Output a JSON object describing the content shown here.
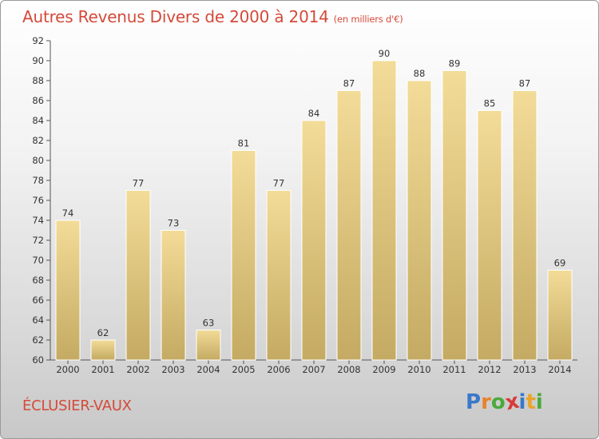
{
  "title": "Autres Revenus Divers de 2000 à 2014",
  "subtitle": "(en milliers d'€)",
  "commune": "ÉCLUSIER-VAUX",
  "logo": {
    "letters": [
      "P",
      "r",
      "o",
      "x",
      "i",
      "t",
      "i"
    ],
    "colors": [
      "#3a78c8",
      "#e8822a",
      "#4aaa3a",
      "#d63c3c",
      "#3a78c8",
      "#e8a52a",
      "#4aaa3a"
    ]
  },
  "colors": {
    "title": "#d44a3a",
    "bar_light": "#f3dc98",
    "bar_dark": "#c4aa62"
  },
  "chart_data": {
    "type": "bar",
    "categories": [
      "2000",
      "2001",
      "2002",
      "2003",
      "2004",
      "2005",
      "2006",
      "2007",
      "2008",
      "2009",
      "2010",
      "2011",
      "2012",
      "2013",
      "2014"
    ],
    "values": [
      74,
      62,
      77,
      73,
      63,
      81,
      77,
      84,
      87,
      90,
      88,
      89,
      85,
      87,
      69
    ],
    "ylim": [
      60,
      92
    ],
    "yticks": [
      60,
      62,
      64,
      66,
      68,
      70,
      72,
      74,
      76,
      78,
      80,
      82,
      84,
      86,
      88,
      90,
      92
    ],
    "grid": false
  }
}
